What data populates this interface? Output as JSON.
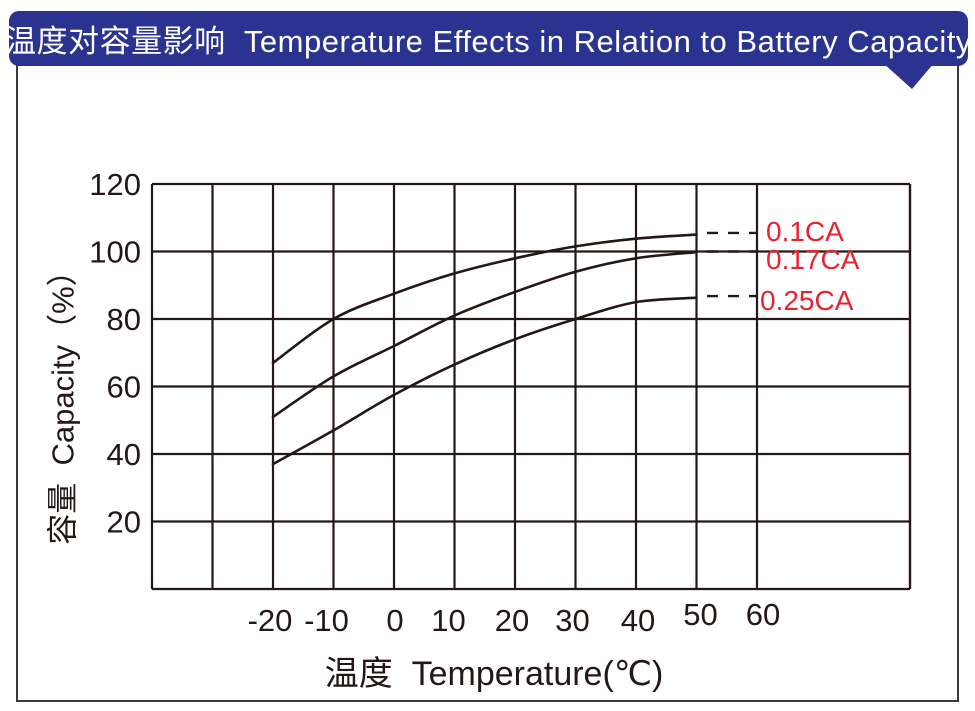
{
  "banner": {
    "title": "温度对容量影响  Temperature Effects in Relation to Battery Capacity"
  },
  "colors": {
    "banner_bg": "#2b3391",
    "banner_text": "#ffffff",
    "page_border": "#3a3a3a",
    "line_color": "#231815",
    "series_label_color": "#e8232e"
  },
  "chart_data": {
    "type": "line",
    "title": "温度对容量影响 Temperature Effects in Relation to Battery Capacity",
    "xlabel": "温度  Temperature(℃)",
    "ylabel": "容量  Capacity（%）",
    "grid": true,
    "x_grid_range": [
      -40,
      60
    ],
    "ylim": [
      0,
      120
    ],
    "x_tick_values": [
      -20,
      -10,
      0,
      10,
      20,
      30,
      40,
      50,
      60
    ],
    "x_tick_labels": [
      "-20",
      "-10",
      "0",
      "10",
      "20",
      "30",
      "40",
      "50",
      "60"
    ],
    "y_tick_values": [
      20,
      40,
      60,
      80,
      100,
      120
    ],
    "y_tick_labels": [
      "20",
      "40",
      "60",
      "80",
      "100",
      "120"
    ],
    "legend_position": "right-inline",
    "series": [
      {
        "name": "0.1CA",
        "x": [
          -20,
          -10,
          0,
          10,
          20,
          30,
          40,
          50
        ],
        "values": [
          67,
          80,
          87.5,
          93.5,
          98,
          101.5,
          103.8,
          105
        ],
        "dashed_extension_x": [
          52,
          60
        ],
        "dashed_extension_value": 105.5
      },
      {
        "name": "0.17CA",
        "x": [
          -20,
          -10,
          0,
          10,
          20,
          30,
          40,
          50
        ],
        "values": [
          51,
          63,
          72,
          81,
          88,
          94,
          98,
          99.8
        ],
        "dashed_extension_x": [
          52,
          60
        ],
        "dashed_extension_value": 100
      },
      {
        "name": "0.25CA",
        "x": [
          -20,
          -10,
          0,
          10,
          20,
          30,
          40,
          50
        ],
        "values": [
          37,
          47,
          57.5,
          66.5,
          74,
          80,
          85,
          86.3
        ],
        "dashed_extension_x": [
          52,
          60
        ],
        "dashed_extension_value": 86.8
      }
    ]
  }
}
